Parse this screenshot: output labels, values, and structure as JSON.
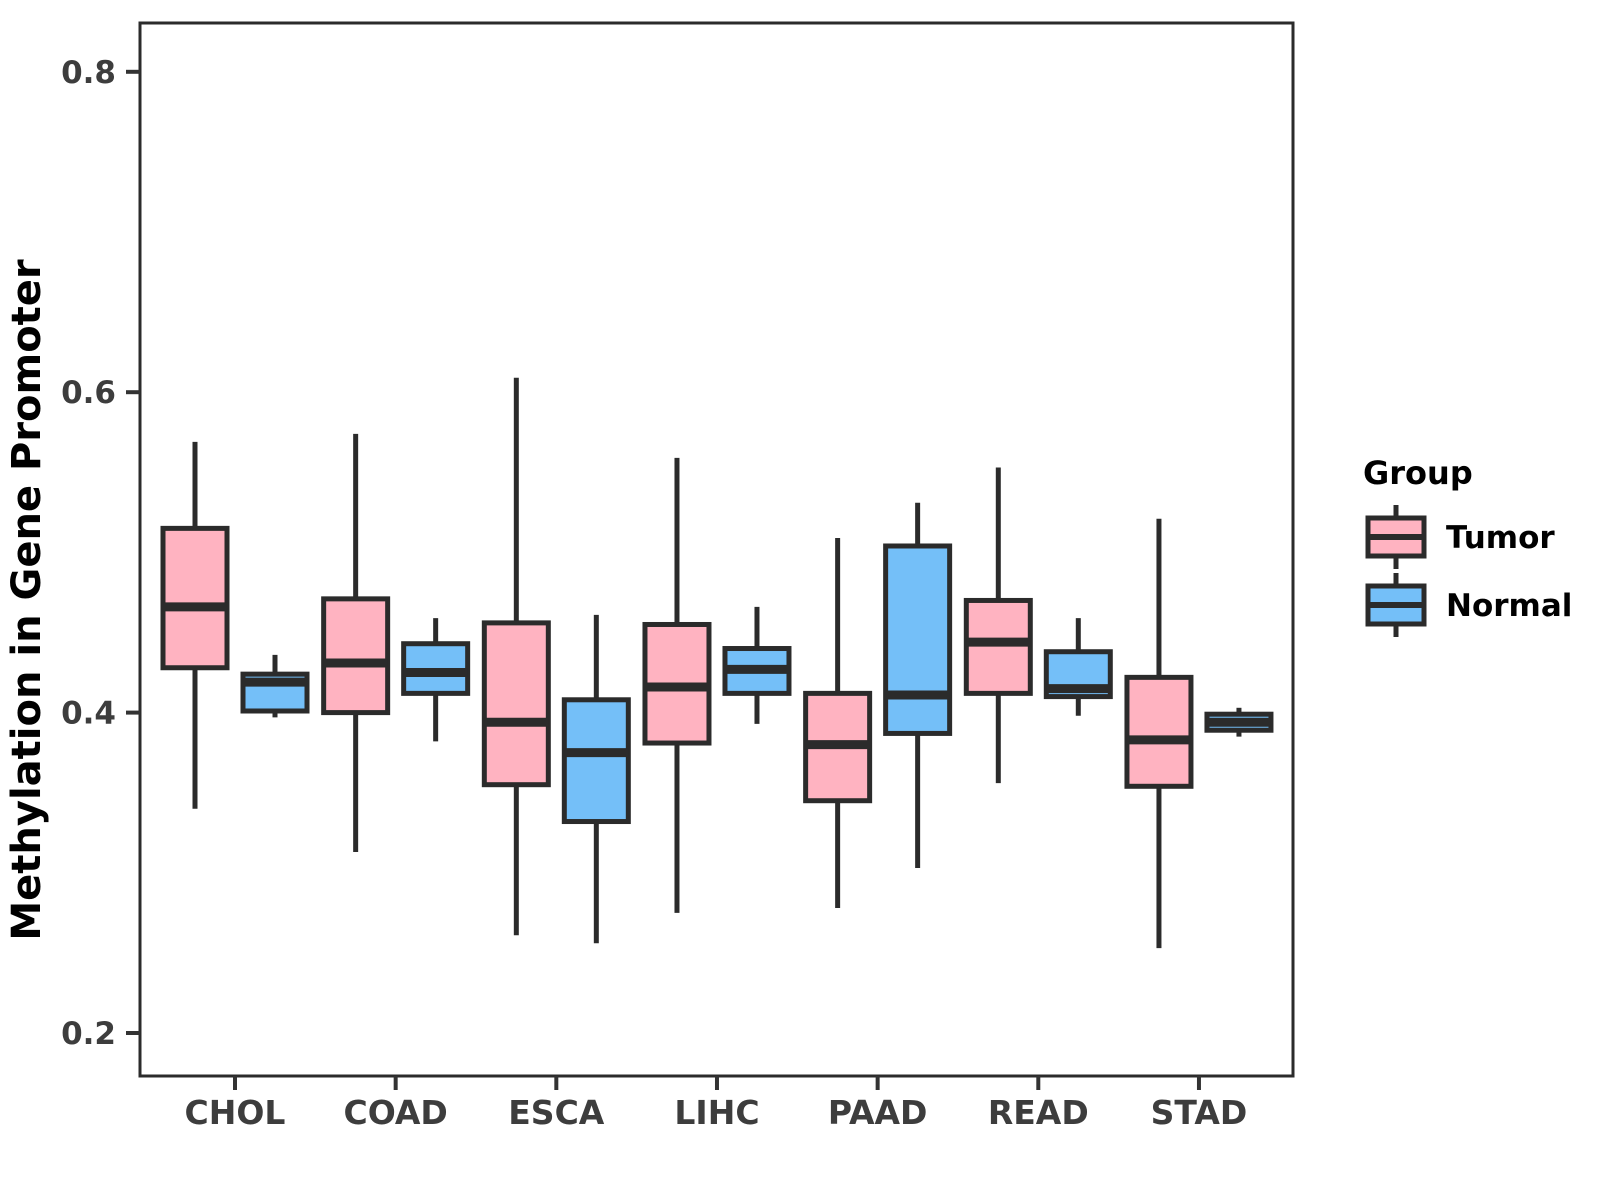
{
  "chart_data": {
    "type": "boxplot",
    "title": "",
    "xlabel": "",
    "ylabel": "Methylation in Gene Promoter",
    "categories": [
      "CHOL",
      "COAD",
      "ESCA",
      "LIHC",
      "PAAD",
      "READ",
      "STAD"
    ],
    "yticks": [
      0.2,
      0.4,
      0.6,
      0.8
    ],
    "ylim": [
      0.17,
      0.83
    ],
    "grid": false,
    "legend": {
      "title": "Group",
      "position": "right",
      "entries": [
        "Tumor",
        "Normal"
      ]
    },
    "style": {
      "tumor_fill": "#FFB3C1",
      "normal_fill": "#74BFF8",
      "box_border": "#2B2B2B",
      "axis_text": "#3D3D3D",
      "title_text": "#000000",
      "background": "#FFFFFF"
    },
    "series": [
      {
        "name": "Tumor",
        "color": "#FFB3C1",
        "boxes": [
          {
            "category": "CHOL",
            "whisker_low": 0.34,
            "q1": 0.428,
            "median": 0.466,
            "q3": 0.515,
            "whisker_high": 0.569
          },
          {
            "category": "COAD",
            "whisker_low": 0.313,
            "q1": 0.4,
            "median": 0.431,
            "q3": 0.471,
            "whisker_high": 0.574
          },
          {
            "category": "ESCA",
            "whisker_low": 0.261,
            "q1": 0.355,
            "median": 0.394,
            "q3": 0.456,
            "whisker_high": 0.609
          },
          {
            "category": "LIHC",
            "whisker_low": 0.275,
            "q1": 0.381,
            "median": 0.416,
            "q3": 0.455,
            "whisker_high": 0.559
          },
          {
            "category": "PAAD",
            "whisker_low": 0.278,
            "q1": 0.345,
            "median": 0.38,
            "q3": 0.412,
            "whisker_high": 0.509
          },
          {
            "category": "READ",
            "whisker_low": 0.356,
            "q1": 0.412,
            "median": 0.444,
            "q3": 0.47,
            "whisker_high": 0.553
          },
          {
            "category": "STAD",
            "whisker_low": 0.253,
            "q1": 0.354,
            "median": 0.383,
            "q3": 0.422,
            "whisker_high": 0.521
          }
        ]
      },
      {
        "name": "Normal",
        "color": "#74BFF8",
        "boxes": [
          {
            "category": "CHOL",
            "whisker_low": 0.397,
            "q1": 0.401,
            "median": 0.419,
            "q3": 0.424,
            "whisker_high": 0.436
          },
          {
            "category": "COAD",
            "whisker_low": 0.382,
            "q1": 0.412,
            "median": 0.425,
            "q3": 0.443,
            "whisker_high": 0.459
          },
          {
            "category": "ESCA",
            "whisker_low": 0.256,
            "q1": 0.332,
            "median": 0.375,
            "q3": 0.408,
            "whisker_high": 0.461
          },
          {
            "category": "LIHC",
            "whisker_low": 0.393,
            "q1": 0.412,
            "median": 0.427,
            "q3": 0.44,
            "whisker_high": 0.466
          },
          {
            "category": "PAAD",
            "whisker_low": 0.303,
            "q1": 0.387,
            "median": 0.411,
            "q3": 0.504,
            "whisker_high": 0.531
          },
          {
            "category": "READ",
            "whisker_low": 0.398,
            "q1": 0.41,
            "median": 0.415,
            "q3": 0.438,
            "whisker_high": 0.459
          },
          {
            "category": "STAD",
            "whisker_low": 0.385,
            "q1": 0.389,
            "median": 0.394,
            "q3": 0.399,
            "whisker_high": 0.403
          }
        ]
      }
    ]
  }
}
